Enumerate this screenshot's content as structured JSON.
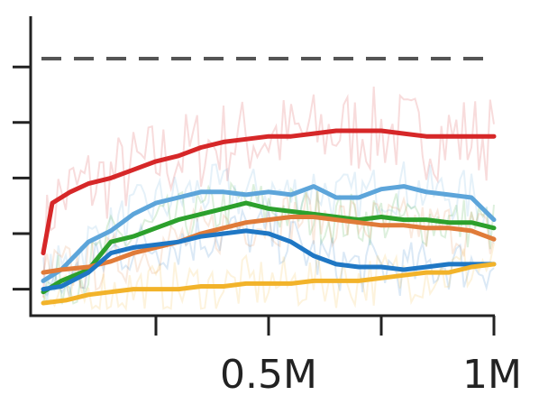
{
  "chart_data": {
    "type": "line",
    "title": "",
    "xlabel": "",
    "ylabel": "",
    "xlim": [
      0,
      1000000
    ],
    "ylim": [
      0,
      1
    ],
    "x_ticks": [
      {
        "value": 250000,
        "label": ""
      },
      {
        "value": 500000,
        "label": "0.5M"
      },
      {
        "value": 750000,
        "label": ""
      },
      {
        "value": 1000000,
        "label": "1M"
      }
    ],
    "y_ticks": [
      0.05,
      0.25,
      0.45,
      0.65,
      0.85
    ],
    "grid": false,
    "legend": "none",
    "reference_line": {
      "y": 0.88,
      "style": "dashed",
      "color": "#555555"
    },
    "series": [
      {
        "color": "#d62728",
        "x": [
          0,
          20000,
          60000,
          100000,
          150000,
          200000,
          250000,
          300000,
          350000,
          400000,
          450000,
          500000,
          550000,
          600000,
          650000,
          700000,
          750000,
          800000,
          850000,
          900000,
          950000,
          1000000
        ],
        "values": [
          0.18,
          0.36,
          0.4,
          0.43,
          0.45,
          0.48,
          0.51,
          0.53,
          0.56,
          0.58,
          0.59,
          0.6,
          0.6,
          0.61,
          0.62,
          0.62,
          0.62,
          0.61,
          0.6,
          0.6,
          0.6,
          0.6
        ]
      },
      {
        "color": "#5da5da",
        "x": [
          0,
          40000,
          100000,
          150000,
          200000,
          250000,
          300000,
          350000,
          400000,
          450000,
          500000,
          550000,
          600000,
          650000,
          700000,
          750000,
          800000,
          850000,
          900000,
          950000,
          1000000
        ],
        "values": [
          0.08,
          0.12,
          0.22,
          0.26,
          0.32,
          0.36,
          0.38,
          0.4,
          0.4,
          0.39,
          0.4,
          0.39,
          0.42,
          0.38,
          0.38,
          0.41,
          0.42,
          0.4,
          0.39,
          0.38,
          0.3
        ]
      },
      {
        "color": "#2ca02c",
        "x": [
          0,
          40000,
          100000,
          150000,
          200000,
          250000,
          300000,
          350000,
          400000,
          450000,
          500000,
          550000,
          600000,
          650000,
          700000,
          750000,
          800000,
          850000,
          900000,
          950000,
          1000000
        ],
        "values": [
          0.04,
          0.08,
          0.12,
          0.22,
          0.24,
          0.27,
          0.3,
          0.32,
          0.34,
          0.36,
          0.34,
          0.33,
          0.32,
          0.31,
          0.3,
          0.31,
          0.3,
          0.3,
          0.29,
          0.29,
          0.27
        ]
      },
      {
        "color": "#e07b39",
        "x": [
          0,
          40000,
          100000,
          150000,
          200000,
          250000,
          300000,
          350000,
          400000,
          450000,
          500000,
          550000,
          600000,
          650000,
          700000,
          750000,
          800000,
          850000,
          900000,
          950000,
          1000000
        ],
        "values": [
          0.11,
          0.12,
          0.13,
          0.15,
          0.18,
          0.2,
          0.22,
          0.25,
          0.27,
          0.29,
          0.3,
          0.31,
          0.31,
          0.3,
          0.29,
          0.28,
          0.28,
          0.27,
          0.27,
          0.26,
          0.23
        ]
      },
      {
        "color": "#1f77c4",
        "x": [
          0,
          40000,
          100000,
          150000,
          200000,
          250000,
          300000,
          350000,
          400000,
          450000,
          500000,
          550000,
          600000,
          650000,
          700000,
          750000,
          800000,
          850000,
          900000,
          950000,
          1000000
        ],
        "values": [
          0.05,
          0.06,
          0.11,
          0.18,
          0.2,
          0.21,
          0.22,
          0.24,
          0.25,
          0.26,
          0.25,
          0.22,
          0.17,
          0.14,
          0.13,
          0.13,
          0.12,
          0.13,
          0.14,
          0.14,
          0.14
        ]
      },
      {
        "color": "#f2b32a",
        "x": [
          0,
          50000,
          100000,
          150000,
          200000,
          250000,
          300000,
          350000,
          400000,
          450000,
          500000,
          550000,
          600000,
          650000,
          700000,
          750000,
          800000,
          850000,
          900000,
          950000,
          1000000
        ],
        "values": [
          0.0,
          0.01,
          0.03,
          0.04,
          0.05,
          0.05,
          0.05,
          0.06,
          0.06,
          0.07,
          0.07,
          0.07,
          0.08,
          0.08,
          0.08,
          0.09,
          0.1,
          0.11,
          0.11,
          0.13,
          0.14
        ]
      }
    ]
  }
}
